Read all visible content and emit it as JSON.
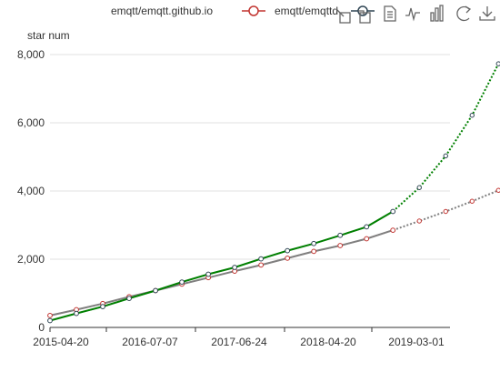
{
  "chart_data": {
    "type": "line",
    "title": "",
    "ylabel": "star num",
    "xlabel": "",
    "ylim": [
      0,
      8000
    ],
    "y_ticks": [
      0,
      2000,
      4000,
      6000,
      8000
    ],
    "y_tick_labels": [
      "0",
      "2,000",
      "4,000",
      "6,000",
      "8,000"
    ],
    "x_range": [
      "2015-04-20",
      "2019-05-15"
    ],
    "x_tick_labels": [
      "2015-04-20",
      "2016-07-07",
      "2017-06-24",
      "2018-04-20",
      "2019-03-01"
    ],
    "grid": true,
    "legend_position": "top-center",
    "series": [
      {
        "name": "emqtt/emqtt.github.io",
        "color": "#c23531",
        "trend_color": "#808080",
        "observed": [
          {
            "x": "2015-04-20",
            "y": 350
          },
          {
            "x": "2015-07-27",
            "y": 520
          },
          {
            "x": "2015-11-02",
            "y": 700
          },
          {
            "x": "2016-02-08",
            "y": 900
          },
          {
            "x": "2016-05-16",
            "y": 1080
          },
          {
            "x": "2016-08-22",
            "y": 1270
          },
          {
            "x": "2016-11-28",
            "y": 1460
          },
          {
            "x": "2017-03-06",
            "y": 1650
          },
          {
            "x": "2017-06-12",
            "y": 1830
          },
          {
            "x": "2017-09-18",
            "y": 2030
          },
          {
            "x": "2017-12-25",
            "y": 2230
          },
          {
            "x": "2018-04-02",
            "y": 2400
          },
          {
            "x": "2018-07-09",
            "y": 2600
          },
          {
            "x": "2018-10-15",
            "y": 2850
          }
        ],
        "forecast": [
          {
            "x": "2018-10-15",
            "y": 2850
          },
          {
            "x": "2019-01-21",
            "y": 3120
          },
          {
            "x": "2019-04-29",
            "y": 3400
          },
          {
            "x": "2019-08-05",
            "y": 3700
          },
          {
            "x": "2019-11-11",
            "y": 4020
          }
        ]
      },
      {
        "name": "emqtt/emqttd",
        "color": "#2f4554",
        "trend_color": "#008000",
        "observed": [
          {
            "x": "2015-04-20",
            "y": 200
          },
          {
            "x": "2015-07-27",
            "y": 410
          },
          {
            "x": "2015-11-02",
            "y": 610
          },
          {
            "x": "2016-02-08",
            "y": 850
          },
          {
            "x": "2016-05-16",
            "y": 1080
          },
          {
            "x": "2016-08-22",
            "y": 1330
          },
          {
            "x": "2016-11-28",
            "y": 1560
          },
          {
            "x": "2017-03-06",
            "y": 1760
          },
          {
            "x": "2017-06-12",
            "y": 2010
          },
          {
            "x": "2017-09-18",
            "y": 2250
          },
          {
            "x": "2017-12-25",
            "y": 2460
          },
          {
            "x": "2018-04-02",
            "y": 2700
          },
          {
            "x": "2018-07-09",
            "y": 2950
          },
          {
            "x": "2018-10-15",
            "y": 3400
          }
        ],
        "forecast": [
          {
            "x": "2018-10-15",
            "y": 3400
          },
          {
            "x": "2019-01-21",
            "y": 4100
          },
          {
            "x": "2019-04-29",
            "y": 5030
          },
          {
            "x": "2019-08-05",
            "y": 6220
          },
          {
            "x": "2019-11-11",
            "y": 7730
          }
        ]
      }
    ]
  },
  "toolbox": {
    "icons": [
      "zoom-icon",
      "zoom-reset-icon",
      "data-view-icon",
      "line-chart-icon",
      "bar-chart-icon",
      "restore-icon",
      "save-image-icon"
    ]
  }
}
